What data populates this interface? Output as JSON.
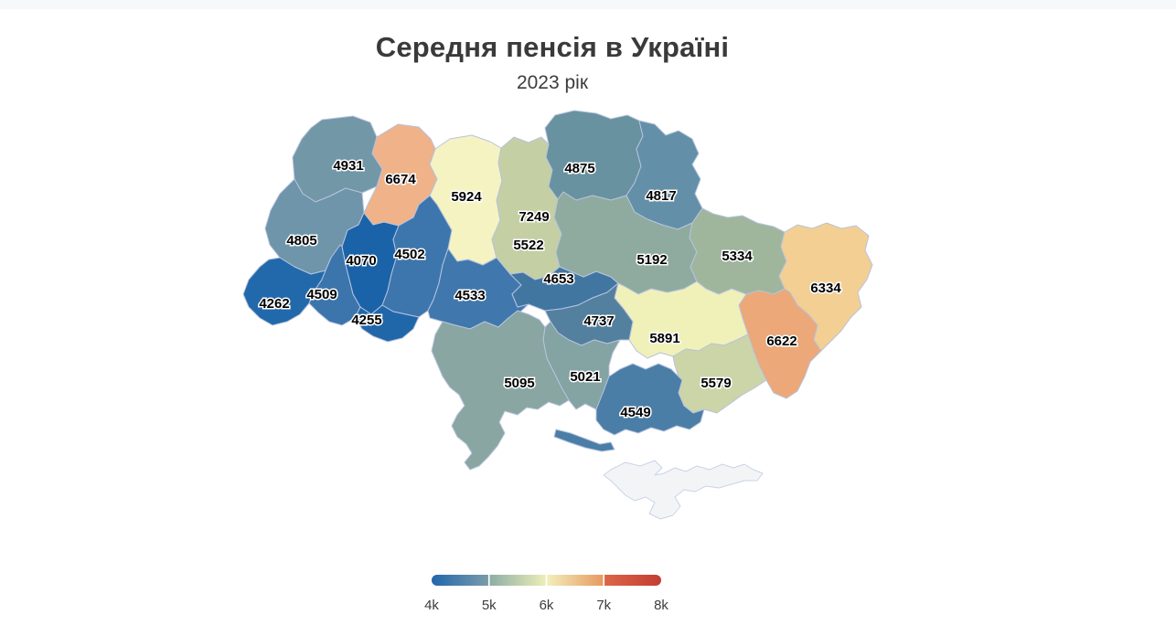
{
  "header": {
    "title": "Середня пенсія в Україні",
    "subtitle": "2023 рік"
  },
  "chart_data": {
    "type": "heatmap",
    "variant": "choropleth-map",
    "geography": "Ukraine oblasts",
    "title": "Середня пенсія в Україні",
    "subtitle": "2023 рік",
    "value_range": [
      4000,
      8000
    ],
    "legend": {
      "position": "bottom",
      "ticks": [
        "4k",
        "5k",
        "6k",
        "7k",
        "8k"
      ],
      "gradient_stops": [
        [
          "#2166ac",
          "#7b9dab"
        ],
        [
          "#8dada5",
          "#edefb8"
        ],
        [
          "#f2f0bc",
          "#e6995f"
        ],
        [
          "#dc6748",
          "#c43c33"
        ]
      ]
    },
    "regions": [
      {
        "id": "volyn",
        "value": 4931,
        "color": "#7297a7"
      },
      {
        "id": "rivne",
        "value": 6674,
        "color": "#efb289"
      },
      {
        "id": "zhytomyr",
        "value": 5924,
        "color": "#f5f3c2"
      },
      {
        "id": "kyiv-city",
        "value": 7249,
        "color": "#dd6a50"
      },
      {
        "id": "kyiv-oblast",
        "value": 5522,
        "color": "#c4cfa4"
      },
      {
        "id": "chernihiv",
        "value": 4875,
        "color": "#68929f"
      },
      {
        "id": "sumy",
        "value": 4817,
        "color": "#6390a8"
      },
      {
        "id": "lviv",
        "value": 4805,
        "color": "#6e95aa"
      },
      {
        "id": "ternopil",
        "value": 4070,
        "color": "#1a63a8"
      },
      {
        "id": "khmelnytskyi",
        "value": 4502,
        "color": "#3d76ad"
      },
      {
        "id": "vinnytsia",
        "value": 4533,
        "color": "#4078ae"
      },
      {
        "id": "cherkasy",
        "value": 4653,
        "color": "#4176a1"
      },
      {
        "id": "poltava",
        "value": 5192,
        "color": "#8fab9f"
      },
      {
        "id": "kharkiv",
        "value": 5334,
        "color": "#9fb69d"
      },
      {
        "id": "luhansk",
        "value": 6334,
        "color": "#f3cf93"
      },
      {
        "id": "donetsk",
        "value": 6622,
        "color": "#eca878"
      },
      {
        "id": "dnipropetrovsk",
        "value": 5891,
        "color": "#f0f0b9"
      },
      {
        "id": "zaporizhzhia",
        "value": 5579,
        "color": "#cbd5a7"
      },
      {
        "id": "kirovohrad",
        "value": 4737,
        "color": "#53809e"
      },
      {
        "id": "mykolaiv",
        "value": 5021,
        "color": "#84a3a3"
      },
      {
        "id": "odesa",
        "value": 5095,
        "color": "#89a6a2"
      },
      {
        "id": "kherson",
        "value": 4549,
        "color": "#4a7ea7"
      },
      {
        "id": "zakarpattia",
        "value": 4262,
        "color": "#2269ab"
      },
      {
        "id": "ivano-frankivsk",
        "value": 4509,
        "color": "#3b75ac"
      },
      {
        "id": "chernivtsi",
        "value": 4255,
        "color": "#2067aa"
      },
      {
        "id": "crimea",
        "value": null,
        "color": "#f3f4f6"
      }
    ]
  }
}
